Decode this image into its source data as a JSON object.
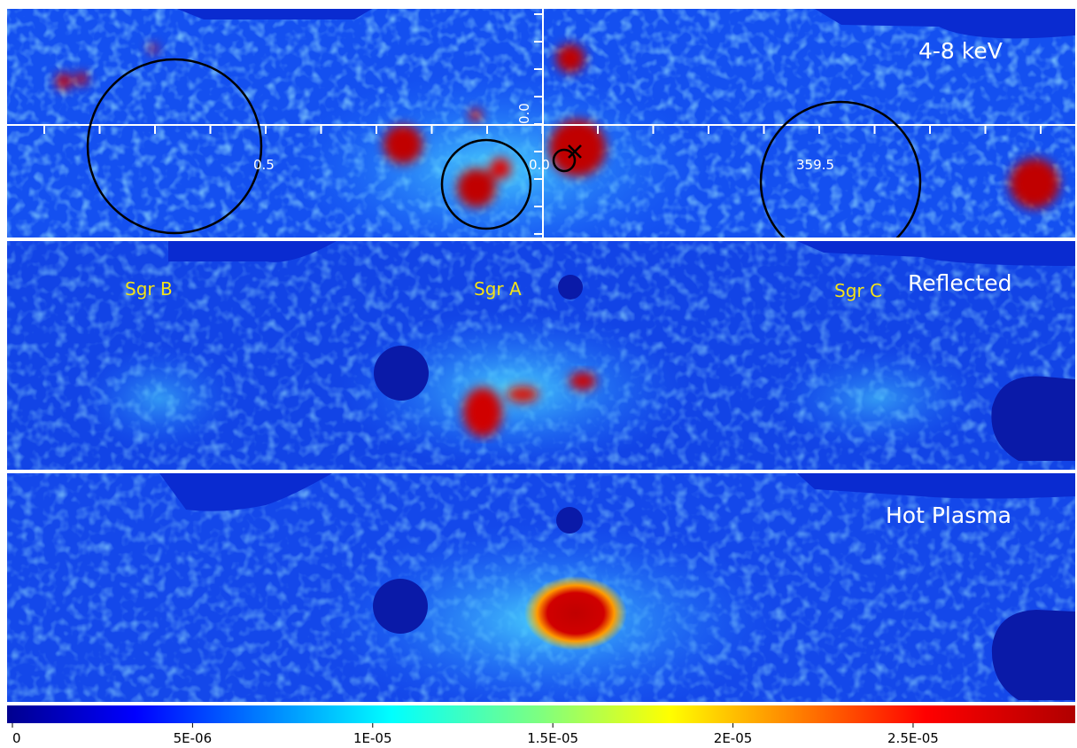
{
  "panels": [
    {
      "label": "4-8 keV",
      "coordinate_labels": [
        "0.5",
        "0.0",
        "359.5",
        "0.0"
      ]
    },
    {
      "label": "Reflected",
      "annotations": [
        "Sgr B",
        "Sgr A",
        "Sgr C"
      ]
    },
    {
      "label": "Hot Plasma"
    }
  ],
  "colorbar": {
    "lim": [
      0,
      2.95e-05
    ],
    "ticks": [
      0,
      {
        "value": 5e-06,
        "label": "5E-06"
      },
      {
        "value": 1e-05,
        "label": "1E-05"
      },
      {
        "value": 1.5e-05,
        "label": "1.5E-05"
      },
      {
        "value": 2e-05,
        "label": "2E-05"
      },
      {
        "value": 2.5e-05,
        "label": "2.5E-05"
      }
    ]
  }
}
